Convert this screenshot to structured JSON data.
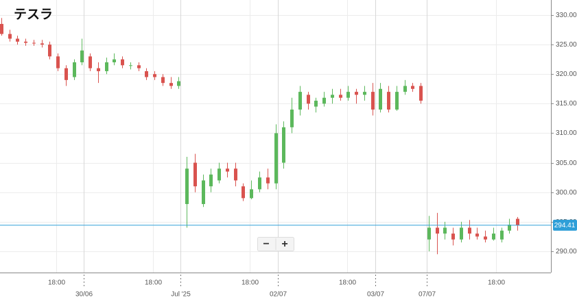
{
  "chart_data": {
    "type": "candlestick",
    "title": "テスラ",
    "up_color": "#5cb85c",
    "down_color": "#d9534f",
    "grid": true,
    "ylim": [
      286.4,
      332.55
    ],
    "yticks": [
      {
        "value": 290,
        "label": "290.00"
      },
      {
        "value": 295,
        "label": "295.00"
      },
      {
        "value": 300,
        "label": "300.00"
      },
      {
        "value": 305,
        "label": "305.00"
      },
      {
        "value": 310,
        "label": "310.00"
      },
      {
        "value": 315,
        "label": "315.00"
      },
      {
        "value": 320,
        "label": "320.00"
      },
      {
        "value": 325,
        "label": "325.00"
      },
      {
        "value": 330,
        "label": "330.00"
      }
    ],
    "xlim": [
      -0.17,
      68.17
    ],
    "xticks": [
      {
        "value": 6.8,
        "label": "18:00"
      },
      {
        "value": 18.8,
        "label": "18:00"
      },
      {
        "value": 30.8,
        "label": "18:00"
      },
      {
        "value": 42.9,
        "label": "18:00"
      },
      {
        "value": 61.4,
        "label": "18:00"
      }
    ],
    "date_ticks": [
      {
        "value": 10.2,
        "label": "30/06"
      },
      {
        "value": 22.2,
        "label": "Jul '25"
      },
      {
        "value": 34.3,
        "label": "02/07"
      },
      {
        "value": 46.4,
        "label": "03/07"
      },
      {
        "value": 52.8,
        "label": "07/07"
      }
    ],
    "last_price": 294.41,
    "controls": [
      "−",
      "+"
    ],
    "ohlc": [
      [
        328.5,
        329.5,
        326.5,
        326.8
      ],
      [
        326.8,
        327.5,
        325.5,
        326
      ],
      [
        326,
        326.5,
        325,
        325.5
      ],
      [
        325.5,
        326,
        324.8,
        325.3
      ],
      [
        325.3,
        325.8,
        324.8,
        325.2
      ],
      [
        325.2,
        325.8,
        324.5,
        325
      ],
      [
        325,
        325.5,
        322.5,
        323
      ],
      [
        323,
        323.5,
        320.5,
        321
      ],
      [
        321,
        321.5,
        318,
        319
      ],
      [
        319.5,
        322.5,
        319,
        322
      ],
      [
        322,
        326,
        321.5,
        324
      ],
      [
        323,
        323.5,
        320.5,
        321
      ],
      [
        321,
        322,
        318.5,
        320.5
      ],
      [
        320.5,
        322.8,
        320,
        322
      ],
      [
        322,
        323.5,
        321.5,
        322.5
      ],
      [
        322.5,
        323,
        321,
        321.5
      ],
      [
        321.5,
        322,
        320.8,
        321.5
      ],
      [
        321.5,
        322,
        320.5,
        321
      ],
      [
        320.5,
        321,
        319,
        319.5
      ],
      [
        320,
        320.5,
        319,
        319.5
      ],
      [
        319.5,
        320,
        318,
        318.5
      ],
      [
        318.5,
        319.5,
        317.5,
        318
      ],
      [
        318,
        319.5,
        317.5,
        318.8
      ],
      [
        298,
        306,
        294,
        304
      ],
      [
        305,
        306.5,
        300,
        301
      ],
      [
        298,
        303,
        297.5,
        302
      ],
      [
        301,
        304,
        300,
        303
      ],
      [
        302,
        305,
        301.5,
        304
      ],
      [
        304,
        305,
        302.5,
        303.5
      ],
      [
        304,
        305,
        301,
        302
      ],
      [
        301,
        301.5,
        298.5,
        299
      ],
      [
        299,
        302,
        298.8,
        300.5
      ],
      [
        300.5,
        303.5,
        300,
        302.5
      ],
      [
        302.5,
        304,
        300.5,
        301.5
      ],
      [
        301.5,
        311.5,
        300.5,
        310
      ],
      [
        305,
        312,
        304,
        311
      ],
      [
        311,
        316,
        310,
        314
      ],
      [
        314,
        318,
        313,
        317
      ],
      [
        316.5,
        317,
        314,
        315
      ],
      [
        314.5,
        316,
        313.5,
        315.5
      ],
      [
        315,
        317,
        314.5,
        316
      ],
      [
        316,
        317.5,
        315,
        316.5
      ],
      [
        316.5,
        317.5,
        315.5,
        316
      ],
      [
        316,
        318,
        315.5,
        317
      ],
      [
        317,
        317.5,
        315,
        316.5
      ],
      [
        316.5,
        318,
        315.5,
        317
      ],
      [
        317,
        318.5,
        313,
        314
      ],
      [
        314,
        318.5,
        313.5,
        317.5
      ],
      [
        317,
        318,
        313.5,
        314
      ],
      [
        314,
        318,
        313.8,
        317
      ],
      [
        317,
        319,
        316.5,
        318
      ],
      [
        318,
        318.5,
        317,
        317.5
      ],
      [
        318,
        318.5,
        315,
        315.5
      ],
      [
        292,
        296,
        290,
        294
      ],
      [
        294,
        296.5,
        289.5,
        293
      ],
      [
        293,
        295,
        292,
        294
      ],
      [
        293,
        294,
        291,
        292
      ],
      [
        292,
        295,
        291.5,
        294
      ],
      [
        294,
        295.3,
        292,
        293
      ],
      [
        293,
        294,
        292,
        292.5
      ],
      [
        292.5,
        293.5,
        291.5,
        292
      ],
      [
        292,
        294,
        291.8,
        293
      ],
      [
        292,
        294,
        291.5,
        293.5
      ],
      [
        293.5,
        295.5,
        293,
        294.5
      ],
      [
        295.5,
        295.8,
        293.5,
        294.41
      ]
    ]
  }
}
